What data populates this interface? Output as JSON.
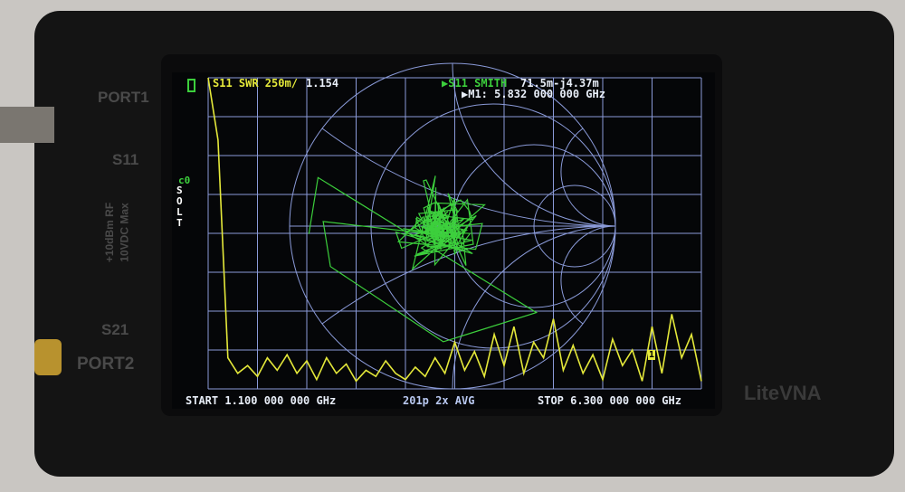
{
  "device": {
    "brand": "LiteVNA",
    "port1_label": "PORT1",
    "port2_label": "PORT2",
    "s11_label": "S11",
    "s21_label": "S21",
    "warning_line1": "+10dBm RF",
    "warning_line2": "10VDC Max"
  },
  "screen": {
    "trace1_header": "S11 SWR 250m/",
    "trace1_value": "1.154",
    "trace2_header": "▶S11 SMITH",
    "trace2_value": "71.5m-j4.37m",
    "marker_readout": "▶M1: 5.832 000 000 GHz",
    "cal_status": "c0",
    "cal_type": [
      "S",
      "O",
      "L",
      "T"
    ],
    "start": "START 1.100 000 000 GHz",
    "points_avg": "201p  2x AVG",
    "stop": "STOP 6.300 000 000 GHz",
    "marker_label": "1",
    "colors": {
      "trace1": "#e4e83a",
      "trace2": "#3ccf3c",
      "grid": "#8a9ad8",
      "background": "#050608",
      "text": "#e8eef8"
    }
  },
  "chart_data": {
    "type": "line",
    "xlim": [
      1.1,
      6.3
    ],
    "x_unit": "GHz",
    "y_scale_per_div": 0.25,
    "ylim": [
      1.0,
      3.0
    ],
    "grid": true,
    "series": [
      {
        "name": "S11 SWR",
        "values": [
          3.0,
          2.6,
          1.2,
          1.1,
          1.15,
          1.08,
          1.2,
          1.12,
          1.22,
          1.1,
          1.18,
          1.06,
          1.2,
          1.1,
          1.16,
          1.05,
          1.12,
          1.08,
          1.18,
          1.1,
          1.06,
          1.14,
          1.08,
          1.2,
          1.1,
          1.3,
          1.12,
          1.24,
          1.08,
          1.35,
          1.15,
          1.4,
          1.1,
          1.3,
          1.2,
          1.45,
          1.12,
          1.28,
          1.1,
          1.22,
          1.06,
          1.32,
          1.15,
          1.25,
          1.05,
          1.4,
          1.1,
          1.48,
          1.2,
          1.35,
          1.05
        ]
      }
    ],
    "marker": {
      "name": "M1",
      "frequency_ghz": 5.832,
      "swr": 1.154
    }
  }
}
